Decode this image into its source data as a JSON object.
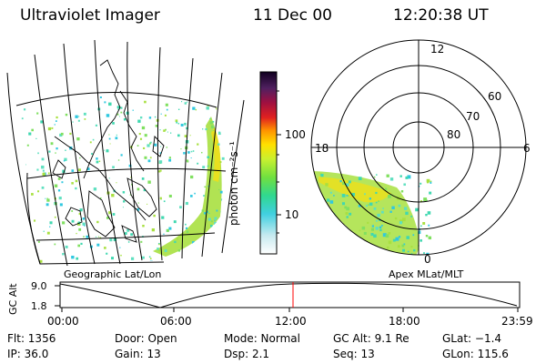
{
  "header": {
    "title": "Ultraviolet Imager",
    "date": "11 Dec 00",
    "time": "12:20:38 UT"
  },
  "colorbar": {
    "unit_label": "photon cm⁻²s⁻¹",
    "tick_labels": [
      "100",
      "10"
    ]
  },
  "polar": {
    "clock_labels": [
      "12",
      "18",
      "6",
      "0"
    ],
    "lat_labels": [
      "60",
      "70",
      "80"
    ]
  },
  "map_captions": {
    "left": "Geographic Lat/Lon",
    "right": "Apex MLat/MLT"
  },
  "altitude_plot": {
    "y_label": "GC Alt",
    "y_ticks": [
      "9.0",
      "1.8"
    ],
    "x_ticks": [
      "00:00",
      "06:00",
      "12:00",
      "18:00",
      "23:59"
    ]
  },
  "info": {
    "flt": "Flt: 1356",
    "ip": "IP: 36.0",
    "door": "Door: Open",
    "gain": "Gain: 13",
    "mode": "Mode: Normal",
    "dsp": "Dsp:     2.1",
    "gc_alt": "GC Alt: 9.1 Re",
    "seq": "Seq: 13",
    "glat": "GLat:  −1.4",
    "glon": "GLon: 115.6"
  },
  "colors": {
    "aurora_green": "#a8e040",
    "aurora_yellow": "#e8e020",
    "aurora_cyan": "#40d8b0",
    "marker_red": "#ff0000"
  }
}
